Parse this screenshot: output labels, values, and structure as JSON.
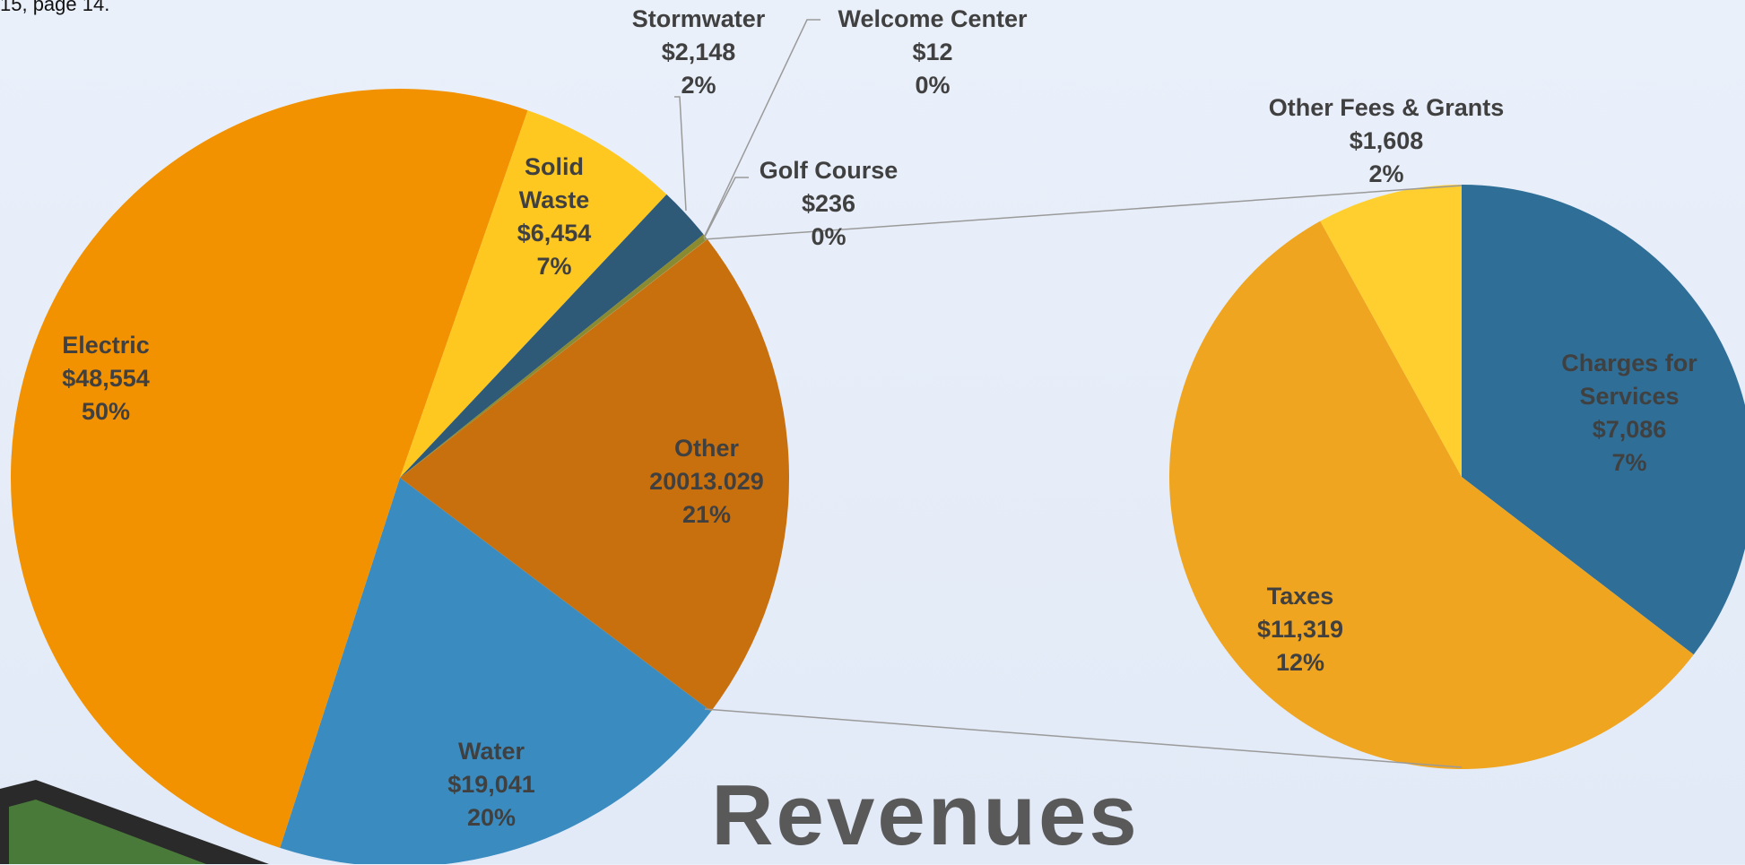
{
  "chart_data": {
    "type": "pie_of_pie",
    "title": "Revenues",
    "note": "15, page 14.",
    "categories": [
      "Other",
      "Water",
      "Electric",
      "Solid Waste",
      "Stormwater",
      "Golf Course",
      "Welcome Center"
    ],
    "values": [
      20013.029,
      19041,
      48554,
      6454,
      2148,
      236,
      12
    ],
    "value_labels": [
      "20013.029",
      "$19,041",
      "$48,554",
      "$6,454",
      "$2,148",
      "$236",
      "$12"
    ],
    "percent_labels": [
      "21%",
      "20%",
      "50%",
      "7%",
      "2%",
      "0%",
      "0%"
    ],
    "colors": [
      "#c8700e",
      "#3a8cc0",
      "#f39200",
      "#ffc820",
      "#2e5a78",
      "#8a8a30",
      "#b08a40"
    ],
    "secondary": {
      "categories": [
        "Charges for Services",
        "Taxes",
        "Other Fees & Grants"
      ],
      "values": [
        7086,
        11319,
        1608
      ],
      "value_labels": [
        "$7,086",
        "$11,319",
        "$1,608"
      ],
      "percent_labels": [
        "7%",
        "12%",
        "2%"
      ],
      "colors": [
        "#2f6f97",
        "#f0a520",
        "#ffcf30"
      ]
    }
  }
}
